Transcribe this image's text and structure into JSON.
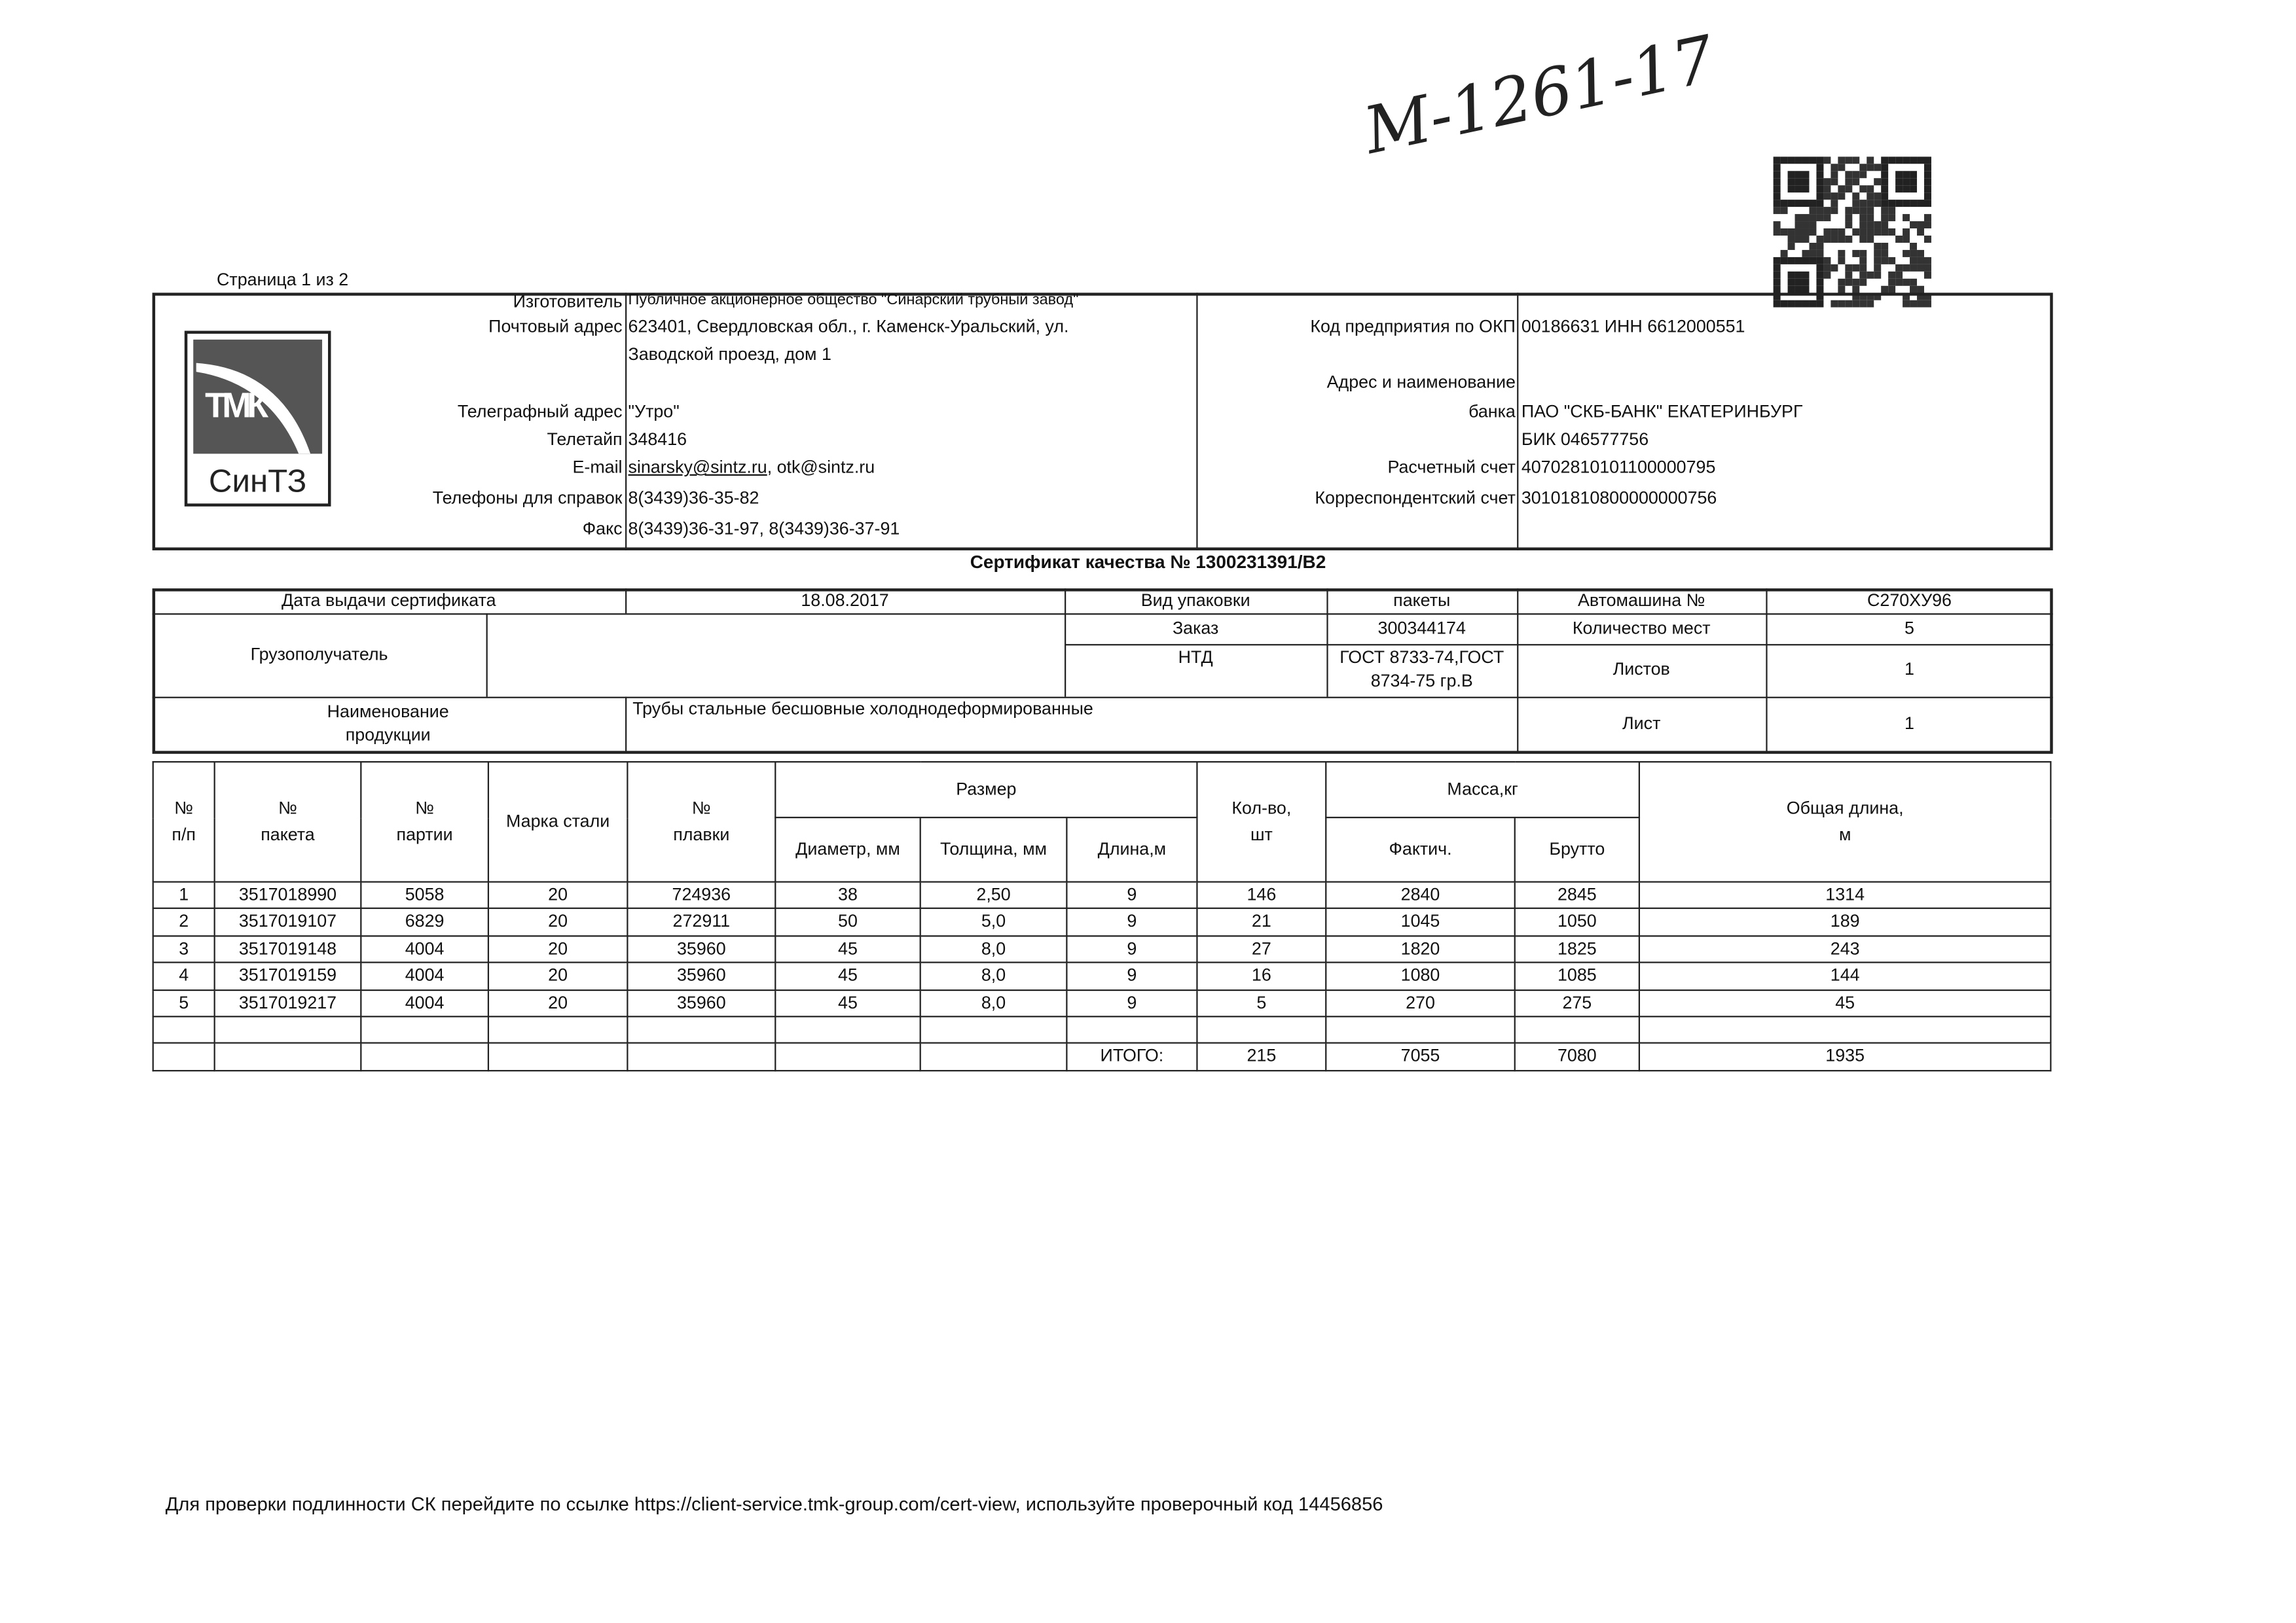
{
  "handwritten_note": "М-1261-17",
  "page_counter": "Страница 1 из 2",
  "logo": {
    "top": "ТМК",
    "bottom": "СинТЗ"
  },
  "company": {
    "rows": [
      {
        "label": "Изготовитель",
        "value": "Публичное акционерное общество \"Синарский трубный завод\""
      },
      {
        "label": "Почтовый адрес",
        "value": "623401, Свердловская обл., г. Каменск-Уральский, ул."
      },
      {
        "label": "",
        "value": "Заводской проезд, дом 1"
      },
      {
        "label": "Телеграфный адрес",
        "value": "\"Утро\""
      },
      {
        "label": "Телетайп",
        "value": "348416"
      },
      {
        "label": "E-mail",
        "value": "sinarsky@sintz.ru",
        "value2": ",  otk@sintz.ru"
      },
      {
        "label": "Телефоны для справок",
        "value": "8(3439)36-35-82"
      },
      {
        "label": "Факс",
        "value": "8(3439)36-31-97, 8(3439)36-37-91"
      }
    ],
    "bank_rows": [
      {
        "label": "Код предприятия по ОКП",
        "value": "00186631 ИНН 6612000551"
      },
      {
        "label": "Адрес и наименование",
        "value": ""
      },
      {
        "label": "банка",
        "value": "ПАО \"СКБ-БАНК\" ЕКАТЕРИНБУРГ"
      },
      {
        "label": "",
        "value": "БИК 046577756"
      },
      {
        "label": "Расчетный счет",
        "value": "40702810101100000795"
      },
      {
        "label": "Корреспондентский счет",
        "value": "30101810800000000756"
      }
    ]
  },
  "certificate_title": "Сертификат качества № 1300231391/В2",
  "info": {
    "issue_date_label": "Дата выдачи сертификата",
    "issue_date": "18.08.2017",
    "packaging_label": "Вид упаковки",
    "packaging": "пакеты",
    "truck_label": "Автомашина №",
    "truck": "С270ХУ96",
    "consignee_label": "Грузополучатель",
    "consignee": "",
    "order_label": "Заказ",
    "order": "300344174",
    "places_label": "Количество мест",
    "places": "5",
    "ntd_label": "НТД",
    "ntd": "ГОСТ 8733-74,ГОСТ 8734-75 гр.В",
    "sheets_label": "Листов",
    "sheets": "1",
    "product_label": "Наименование продукции",
    "product": "Трубы стальные бесшовные холоднодеформированные",
    "sheet_label": "Лист",
    "sheet": "1"
  },
  "table": {
    "headers": {
      "num": "№ п/п",
      "package": "№ пакета",
      "batch": "№ партии",
      "steel": "Марка стали",
      "heat": "№ плавки",
      "size": "Размер",
      "diameter": "Диаметр, мм",
      "thickness": "Толщина, мм",
      "length": "Длина,м",
      "qty": "Кол-во, шт",
      "mass": "Масса,кг",
      "actual": "Фактич.",
      "gross": "Брутто",
      "total_length": "Общая длина, м"
    },
    "rows": [
      [
        "1",
        "3517018990",
        "5058",
        "20",
        "724936",
        "38",
        "2,50",
        "9",
        "146",
        "2840",
        "2845",
        "1314"
      ],
      [
        "2",
        "3517019107",
        "6829",
        "20",
        "272911",
        "50",
        "5,0",
        "9",
        "21",
        "1045",
        "1050",
        "189"
      ],
      [
        "3",
        "3517019148",
        "4004",
        "20",
        "35960",
        "45",
        "8,0",
        "9",
        "27",
        "1820",
        "1825",
        "243"
      ],
      [
        "4",
        "3517019159",
        "4004",
        "20",
        "35960",
        "45",
        "8,0",
        "9",
        "16",
        "1080",
        "1085",
        "144"
      ],
      [
        "5",
        "3517019217",
        "4004",
        "20",
        "35960",
        "45",
        "8,0",
        "9",
        "5",
        "270",
        "275",
        "45"
      ]
    ],
    "total": {
      "label": "ИТОГО:",
      "qty": "215",
      "actual": "7055",
      "gross": "7080",
      "total_length": "1935"
    }
  },
  "footer": "Для проверки подлинности СК перейдите по ссылке https://client-service.tmk-group.com/cert-view, используйте проверочный код 14456856"
}
